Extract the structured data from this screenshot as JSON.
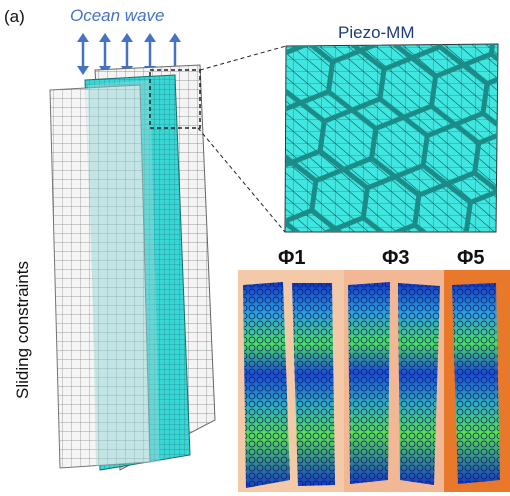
{
  "panel_label": "(a)",
  "ocean_wave": "Ocean wave",
  "piezo_label": "Piezo-MM",
  "side_label": "Sliding constraints",
  "phases": [
    "Φ1",
    "Φ3",
    "Φ5"
  ]
}
